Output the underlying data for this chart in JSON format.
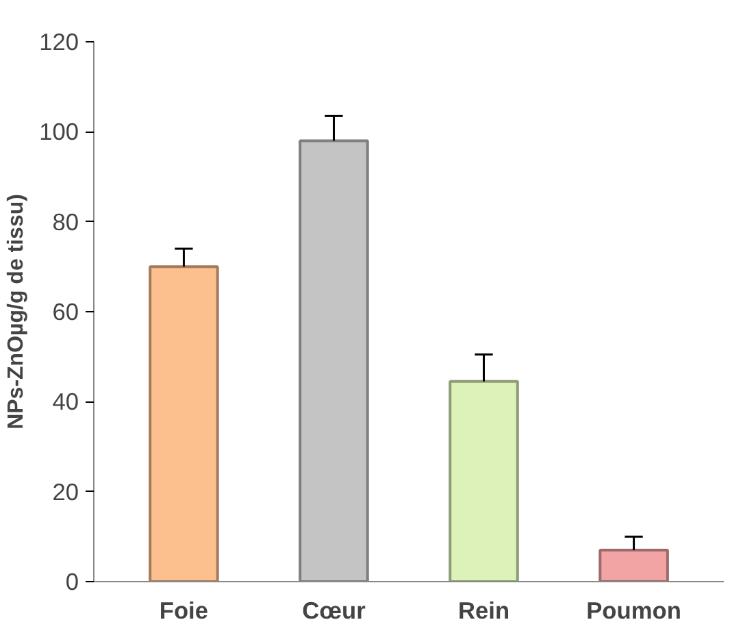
{
  "chart_data": {
    "type": "bar",
    "ylabel": "NPs-ZnOµg/g de tissu)",
    "categories": [
      "Foie",
      "Cœur",
      "Rein",
      "Poumon"
    ],
    "values": [
      70,
      98,
      44.5,
      7
    ],
    "errors": [
      [
        70,
        74
      ],
      [
        98,
        103.5
      ],
      [
        44.5,
        50.5
      ],
      [
        7,
        10
      ]
    ],
    "colors": [
      "#fbc08e",
      "#c4c4c4",
      "#dcf2b8",
      "#f2a4a4"
    ],
    "ylim": [
      0,
      120
    ],
    "yticks": [
      0,
      20,
      40,
      60,
      80,
      100,
      120
    ],
    "grid": false
  }
}
